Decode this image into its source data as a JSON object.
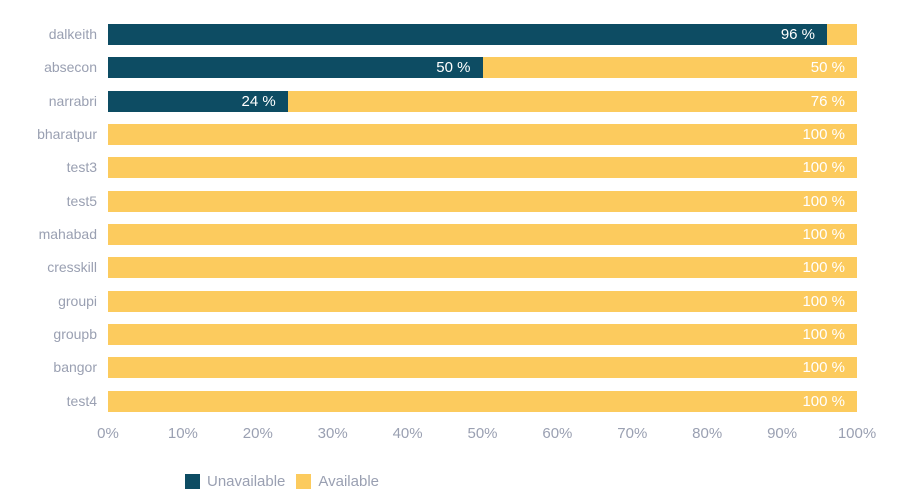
{
  "chart_data": {
    "type": "bar",
    "orientation": "horizontal",
    "stacked": true,
    "title": "",
    "xlabel": "",
    "ylabel": "",
    "xlim": [
      0,
      100
    ],
    "grid": false,
    "categories": [
      "dalkeith",
      "absecon",
      "narrabri",
      "bharatpur",
      "test3",
      "test5",
      "mahabad",
      "cresskill",
      "groupi",
      "groupb",
      "bangor",
      "test4"
    ],
    "series": [
      {
        "name": "Unavailable",
        "color": "#0d4c63",
        "values": [
          96,
          50,
          24,
          0,
          0,
          0,
          0,
          0,
          0,
          0,
          0,
          0
        ]
      },
      {
        "name": "Available",
        "color": "#fccb5e",
        "values": [
          4,
          50,
          76,
          100,
          100,
          100,
          100,
          100,
          100,
          100,
          100,
          100
        ]
      }
    ],
    "segment_labels": [
      [
        "96 %",
        ""
      ],
      [
        "50 %",
        "50 %"
      ],
      [
        "24 %",
        "76 %"
      ],
      [
        "",
        "100 %"
      ],
      [
        "",
        "100 %"
      ],
      [
        "",
        "100 %"
      ],
      [
        "",
        "100 %"
      ],
      [
        "",
        "100 %"
      ],
      [
        "",
        "100 %"
      ],
      [
        "",
        "100 %"
      ],
      [
        "",
        "100 %"
      ],
      [
        "",
        "100 %"
      ]
    ],
    "x_ticks": [
      "0%",
      "10%",
      "20%",
      "30%",
      "40%",
      "50%",
      "60%",
      "70%",
      "80%",
      "90%",
      "100%"
    ],
    "legend": {
      "position": "bottom",
      "items": [
        "Unavailable",
        "Available"
      ]
    }
  },
  "colors": {
    "background": "#ffffff",
    "axis_text": "#9aa0b2",
    "value_label_text": "#ffffff",
    "unavailable": "#0d4c63",
    "available": "#fccb5e"
  }
}
